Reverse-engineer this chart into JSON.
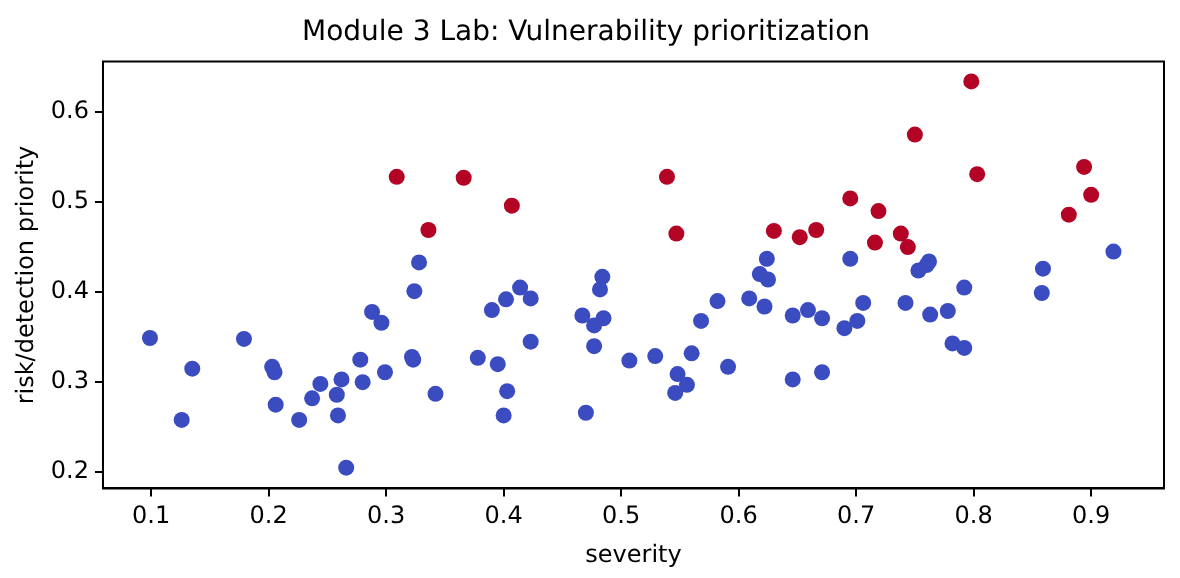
{
  "chart_data": {
    "type": "scatter",
    "title": "Module 3 Lab: Vulnerability prioritization",
    "xlabel": "severity",
    "ylabel": "risk/detection priority",
    "xlim": [
      0.059,
      0.962
    ],
    "ylim": [
      0.182,
      0.656
    ],
    "xticks": [
      0.1,
      0.2,
      0.3,
      0.4,
      0.5,
      0.6,
      0.7,
      0.8,
      0.9
    ],
    "yticks": [
      0.2,
      0.3,
      0.4,
      0.5,
      0.6
    ],
    "grid": false,
    "legend": false,
    "marker": "circle",
    "series": [
      {
        "color": "#3b4cc0",
        "x": [
          0.099,
          0.135,
          0.126,
          0.179,
          0.203,
          0.205,
          0.206,
          0.226,
          0.237,
          0.244,
          0.262,
          0.258,
          0.259,
          0.266,
          0.278,
          0.28,
          0.288,
          0.296,
          0.299,
          0.322,
          0.323,
          0.324,
          0.328,
          0.342,
          0.378,
          0.395,
          0.403,
          0.4,
          0.39,
          0.402,
          0.414,
          0.423,
          0.423,
          0.467,
          0.477,
          0.485,
          0.482,
          0.484,
          0.477,
          0.47,
          0.507,
          0.529,
          0.548,
          0.556,
          0.546,
          0.56,
          0.568,
          0.582,
          0.591,
          0.609,
          0.622,
          0.618,
          0.625,
          0.624,
          0.646,
          0.659,
          0.671,
          0.646,
          0.671,
          0.695,
          0.69,
          0.701,
          0.706,
          0.742,
          0.753,
          0.762,
          0.76,
          0.763,
          0.778,
          0.792,
          0.782,
          0.792,
          0.859,
          0.858,
          0.919
        ],
        "values": [
          0.349,
          0.315,
          0.258,
          0.348,
          0.317,
          0.311,
          0.275,
          0.258,
          0.282,
          0.298,
          0.303,
          0.286,
          0.263,
          0.205,
          0.325,
          0.3,
          0.378,
          0.366,
          0.311,
          0.328,
          0.325,
          0.401,
          0.433,
          0.287,
          0.327,
          0.32,
          0.29,
          0.263,
          0.38,
          0.392,
          0.405,
          0.393,
          0.345,
          0.374,
          0.363,
          0.371,
          0.403,
          0.417,
          0.34,
          0.266,
          0.324,
          0.329,
          0.309,
          0.297,
          0.288,
          0.332,
          0.368,
          0.39,
          0.317,
          0.393,
          0.384,
          0.42,
          0.414,
          0.437,
          0.374,
          0.38,
          0.371,
          0.303,
          0.311,
          0.437,
          0.36,
          0.368,
          0.388,
          0.388,
          0.424,
          0.434,
          0.43,
          0.375,
          0.379,
          0.405,
          0.343,
          0.338,
          0.426,
          0.399,
          0.445
        ]
      },
      {
        "color": "#b40426",
        "x": [
          0.309,
          0.336,
          0.366,
          0.407,
          0.539,
          0.547,
          0.63,
          0.652,
          0.666,
          0.695,
          0.719,
          0.716,
          0.738,
          0.744,
          0.75,
          0.798,
          0.803,
          0.881,
          0.894,
          0.9
        ],
        "values": [
          0.528,
          0.469,
          0.527,
          0.496,
          0.528,
          0.465,
          0.468,
          0.461,
          0.469,
          0.504,
          0.49,
          0.455,
          0.465,
          0.45,
          0.575,
          0.634,
          0.531,
          0.486,
          0.539,
          0.508
        ]
      }
    ]
  }
}
